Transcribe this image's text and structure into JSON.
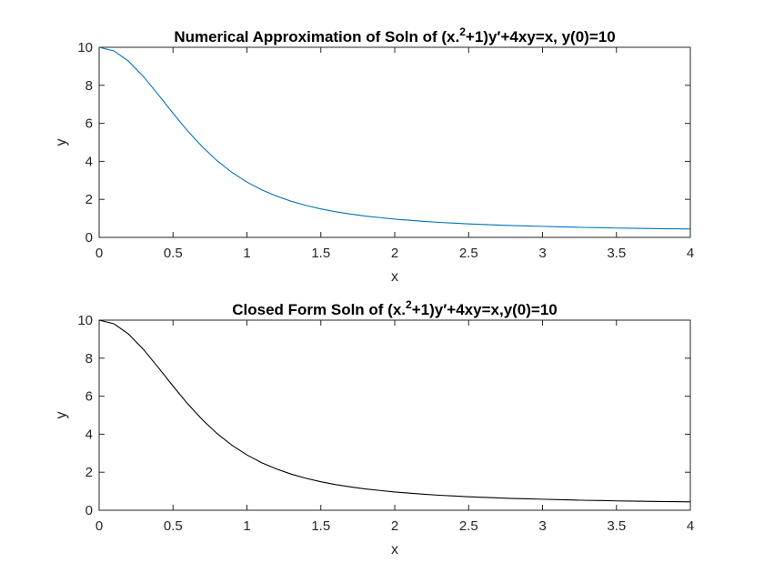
{
  "chart_data": [
    {
      "type": "line",
      "title_parts": [
        "Numerical Approximation of Soln of (x.",
        "2",
        "+1)y′+4xy=x, y(0)=10"
      ],
      "xlabel": "x",
      "ylabel": "y",
      "xlim": [
        0,
        4
      ],
      "ylim": [
        0,
        10
      ],
      "xticks": [
        0,
        0.5,
        1,
        1.5,
        2,
        2.5,
        3,
        3.5,
        4
      ],
      "xtick_labels": [
        "0",
        "0.5",
        "1",
        "1.5",
        "2",
        "2.5",
        "3",
        "3.5",
        "4"
      ],
      "yticks": [
        0,
        2,
        4,
        6,
        8,
        10
      ],
      "ytick_labels": [
        "0",
        "2",
        "4",
        "6",
        "8",
        "10"
      ],
      "grid": false,
      "series": [
        {
          "color": "#0072BD",
          "x": [
            0,
            0.1,
            0.2,
            0.3,
            0.4,
            0.5,
            0.6,
            0.7,
            0.8,
            0.9,
            1.0,
            1.1,
            1.2,
            1.3,
            1.4,
            1.5,
            1.6,
            1.7,
            1.8,
            1.9,
            2.0,
            2.1,
            2.2,
            2.3,
            2.4,
            2.5,
            2.6,
            2.7,
            2.8,
            2.9,
            3.0,
            3.1,
            3.2,
            3.3,
            3.4,
            3.5,
            3.6,
            3.7,
            3.8,
            3.9,
            4.0
          ],
          "y": [
            10.0,
            9.81,
            9.26,
            8.46,
            7.51,
            6.53,
            5.59,
            4.75,
            4.02,
            3.41,
            2.91,
            2.5,
            2.17,
            1.9,
            1.68,
            1.5,
            1.35,
            1.23,
            1.12,
            1.04,
            0.96,
            0.9,
            0.84,
            0.79,
            0.75,
            0.71,
            0.68,
            0.65,
            0.62,
            0.6,
            0.58,
            0.56,
            0.54,
            0.52,
            0.51,
            0.49,
            0.48,
            0.47,
            0.46,
            0.45,
            0.44
          ]
        }
      ]
    },
    {
      "type": "line",
      "title_parts": [
        "Closed Form Soln of (x.",
        "2",
        "+1)y′+4xy=x,y(0)=10"
      ],
      "xlabel": "x",
      "ylabel": "y",
      "xlim": [
        0,
        4
      ],
      "ylim": [
        0,
        10
      ],
      "xticks": [
        0,
        0.5,
        1,
        1.5,
        2,
        2.5,
        3,
        3.5,
        4
      ],
      "xtick_labels": [
        "0",
        "0.5",
        "1",
        "1.5",
        "2",
        "2.5",
        "3",
        "3.5",
        "4"
      ],
      "yticks": [
        0,
        2,
        4,
        6,
        8,
        10
      ],
      "ytick_labels": [
        "0",
        "2",
        "4",
        "6",
        "8",
        "10"
      ],
      "grid": false,
      "series": [
        {
          "color": "#000000",
          "x": [
            0,
            0.1,
            0.2,
            0.3,
            0.4,
            0.5,
            0.6,
            0.7,
            0.8,
            0.9,
            1.0,
            1.1,
            1.2,
            1.3,
            1.4,
            1.5,
            1.6,
            1.7,
            1.8,
            1.9,
            2.0,
            2.1,
            2.2,
            2.3,
            2.4,
            2.5,
            2.6,
            2.7,
            2.8,
            2.9,
            3.0,
            3.1,
            3.2,
            3.3,
            3.4,
            3.5,
            3.6,
            3.7,
            3.8,
            3.9,
            4.0
          ],
          "y": [
            10.0,
            9.81,
            9.26,
            8.46,
            7.51,
            6.53,
            5.59,
            4.75,
            4.02,
            3.41,
            2.91,
            2.5,
            2.17,
            1.9,
            1.68,
            1.5,
            1.35,
            1.23,
            1.12,
            1.04,
            0.96,
            0.9,
            0.84,
            0.79,
            0.75,
            0.71,
            0.68,
            0.65,
            0.62,
            0.6,
            0.58,
            0.56,
            0.54,
            0.52,
            0.51,
            0.49,
            0.48,
            0.47,
            0.46,
            0.45,
            0.44
          ]
        }
      ]
    }
  ]
}
